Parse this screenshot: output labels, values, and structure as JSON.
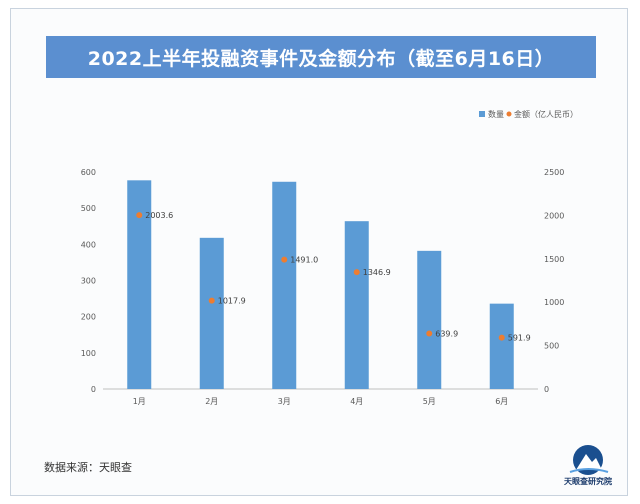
{
  "title": "2022上半年投融资事件及金额分布（截至6月16日）",
  "source": "数据来源：天眼查",
  "logo_text": "天眼查研究院",
  "colors": {
    "bar": "#5b9bd5",
    "point": "#ed7d31",
    "title_bg": "#5b8fd0",
    "grid": "#e0e0e0",
    "text": "#595959"
  },
  "chart_data": {
    "type": "bar",
    "categories": [
      "1月",
      "2月",
      "3月",
      "4月",
      "5月",
      "6月"
    ],
    "series": [
      {
        "name": "数量",
        "type": "bar",
        "axis": "left",
        "values": [
          577,
          418,
          573,
          464,
          382,
          236
        ]
      },
      {
        "name": "金额（亿人民币）",
        "type": "scatter",
        "axis": "right",
        "values": [
          2003.6,
          1017.9,
          1491.0,
          1346.9,
          639.9,
          591.9
        ],
        "labels": [
          "2003.6",
          "1017.9",
          "1491.0",
          "1346.9",
          "639.9",
          "591.9"
        ]
      }
    ],
    "y_left": {
      "min": 0,
      "max": 600,
      "ticks": [
        0,
        100,
        200,
        300,
        400,
        500,
        600
      ]
    },
    "y_right": {
      "min": 0,
      "max": 2500,
      "ticks": [
        0,
        500,
        1000,
        1500,
        2000,
        2500
      ]
    },
    "legend_position": "top-right",
    "grid": false
  }
}
